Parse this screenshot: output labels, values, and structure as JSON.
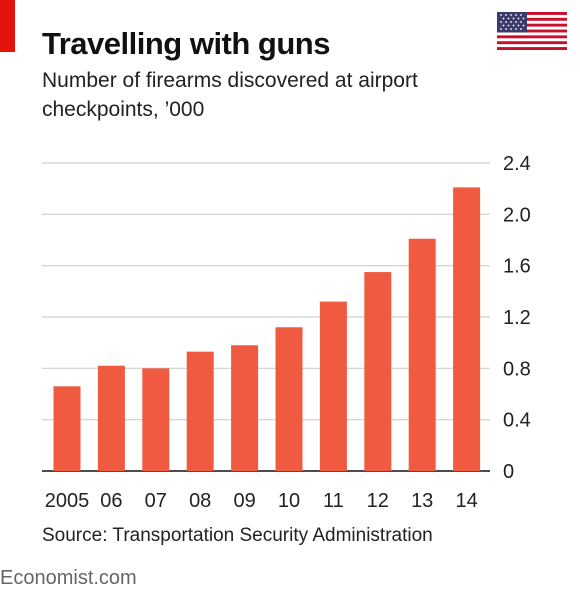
{
  "header": {
    "title": "Travelling with guns",
    "subtitle": "Number of firearms discovered at airport checkpoints, ’000",
    "flag_icon": "us-flag-icon"
  },
  "footer": {
    "source": "Source: Transportation Security Administration",
    "brand": "Economist.com"
  },
  "colors": {
    "bar": "#ef5a41",
    "brand_red": "#e3120b",
    "grid": "#cfcfcf",
    "axis": "#111111"
  },
  "chart_data": {
    "type": "bar",
    "title": "Travelling with guns",
    "subtitle": "Number of firearms discovered at airport checkpoints, ’000",
    "categories": [
      "2005",
      "06",
      "07",
      "08",
      "09",
      "10",
      "11",
      "12",
      "13",
      "14"
    ],
    "values": [
      0.66,
      0.82,
      0.8,
      0.93,
      0.98,
      1.12,
      1.32,
      1.55,
      1.81,
      2.21
    ],
    "ylim": [
      0,
      2.4
    ],
    "yticks": [
      "0",
      "0.4",
      "0.8",
      "1.2",
      "1.6",
      "2.0",
      "2.4"
    ],
    "ytick_values": [
      0,
      0.4,
      0.8,
      1.2,
      1.6,
      2.0,
      2.4
    ],
    "y_axis_side": "right",
    "grid": true,
    "xlabel": "",
    "ylabel": ""
  }
}
